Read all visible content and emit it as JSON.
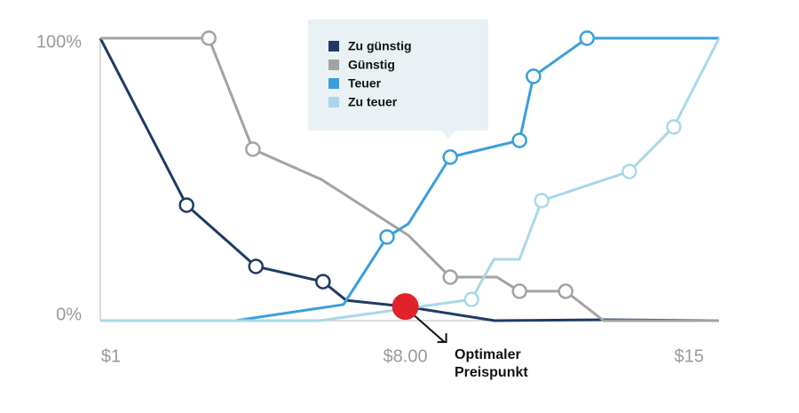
{
  "chart_data": {
    "type": "line",
    "xlim": [
      1,
      15.2
    ],
    "ylim": [
      0,
      100
    ],
    "xticks": [
      {
        "value": 1,
        "label": "$1"
      },
      {
        "value": 8,
        "label": "$8.00"
      },
      {
        "value": 15,
        "label": "$15"
      }
    ],
    "yticks": [
      {
        "value": 0,
        "label": "0%"
      },
      {
        "value": 100,
        "label": "100%"
      }
    ],
    "series": [
      {
        "name": "Zu günstig",
        "color": "#1f3b63",
        "x": [
          1,
          2.98,
          4.57,
          6.11,
          6.64,
          8,
          10.05,
          12.55,
          15.2
        ],
        "values": [
          100,
          40.9,
          19.2,
          13.8,
          7.2,
          5,
          0,
          0.3,
          0
        ],
        "markers": [
          false,
          true,
          true,
          true,
          false,
          false,
          false,
          false,
          false
        ]
      },
      {
        "name": "Günstig",
        "color": "#a3a3a3",
        "x": [
          1,
          3.49,
          4.5,
          6.07,
          8.07,
          9.03,
          10.1,
          10.62,
          11.68,
          12.55,
          15.2
        ],
        "values": [
          100,
          100,
          60.7,
          50,
          30.2,
          15.4,
          15.4,
          10.4,
          10.4,
          0,
          0
        ],
        "markers": [
          false,
          true,
          true,
          false,
          false,
          true,
          false,
          true,
          true,
          false,
          false
        ]
      },
      {
        "name": "Teuer",
        "color": "#3a9fd8",
        "x": [
          1,
          4.1,
          6.58,
          7.58,
          8.07,
          9.03,
          10.62,
          10.94,
          12.17,
          15.2
        ],
        "values": [
          0,
          0,
          5.7,
          29.6,
          34.3,
          57.9,
          63.8,
          86.5,
          100,
          100
        ],
        "markers": [
          false,
          false,
          false,
          true,
          false,
          true,
          true,
          true,
          true,
          false
        ]
      },
      {
        "name": "Zu teuer",
        "color": "#a8d8e8",
        "x": [
          1,
          6.03,
          9.52,
          10.03,
          10.62,
          11.13,
          13.14,
          14.16,
          15.2
        ],
        "values": [
          0,
          0,
          7.5,
          21.7,
          21.7,
          42.5,
          52.8,
          68.6,
          100
        ],
        "markers": [
          false,
          false,
          true,
          false,
          false,
          true,
          true,
          true,
          false
        ]
      }
    ],
    "annotation": {
      "x": 8,
      "y": 5,
      "label": "Optimaler Preispunkt",
      "color": "#e0232a"
    }
  }
}
